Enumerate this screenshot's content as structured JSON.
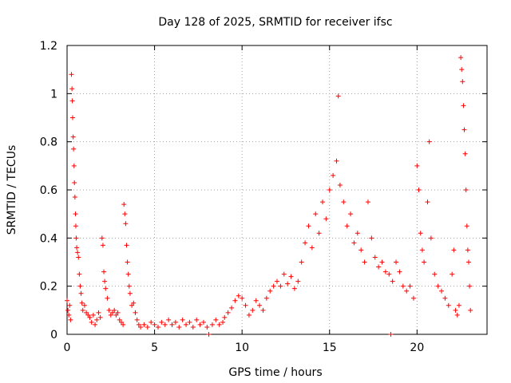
{
  "chart_data": {
    "type": "scatter",
    "title": "Day 128 of 2025, SRMTID for receiver ifsc",
    "xlabel": "GPS time / hours",
    "ylabel": "SRMTID / TECUs",
    "xlim": [
      0,
      24
    ],
    "ylim": [
      0,
      1.2
    ],
    "xticks": [
      0,
      5,
      10,
      15,
      20
    ],
    "yticks": [
      0,
      0.2,
      0.4,
      0.6,
      0.8,
      1,
      1.2
    ],
    "xtick_labels": [
      "0",
      "5",
      "10",
      "15",
      "20"
    ],
    "ytick_labels": [
      "0",
      "0.2",
      "0.4",
      "0.6",
      "0.8",
      "1",
      "1.2"
    ],
    "grid": true,
    "marker": "+",
    "color": "#ff0000",
    "series": [
      {
        "name": "SRMTID",
        "points": [
          [
            0.0,
            0.14
          ],
          [
            0.05,
            0.1
          ],
          [
            0.1,
            0.08
          ],
          [
            0.15,
            0.12
          ],
          [
            0.2,
            0.06
          ],
          [
            0.25,
            1.08
          ],
          [
            0.28,
            1.02
          ],
          [
            0.3,
            0.97
          ],
          [
            0.32,
            0.9
          ],
          [
            0.35,
            0.82
          ],
          [
            0.37,
            0.77
          ],
          [
            0.4,
            0.7
          ],
          [
            0.42,
            0.63
          ],
          [
            0.45,
            0.57
          ],
          [
            0.48,
            0.5
          ],
          [
            0.5,
            0.45
          ],
          [
            0.52,
            0.4
          ],
          [
            0.55,
            0.36
          ],
          [
            0.6,
            0.34
          ],
          [
            0.65,
            0.32
          ],
          [
            0.7,
            0.25
          ],
          [
            0.75,
            0.2
          ],
          [
            0.8,
            0.17
          ],
          [
            0.85,
            0.13
          ],
          [
            0.9,
            0.1
          ],
          [
            1.0,
            0.12
          ],
          [
            1.1,
            0.09
          ],
          [
            1.2,
            0.08
          ],
          [
            1.3,
            0.07
          ],
          [
            1.4,
            0.05
          ],
          [
            1.5,
            0.08
          ],
          [
            1.6,
            0.04
          ],
          [
            1.7,
            0.06
          ],
          [
            1.8,
            0.09
          ],
          [
            1.9,
            0.07
          ],
          [
            2.0,
            0.4
          ],
          [
            2.05,
            0.37
          ],
          [
            2.1,
            0.26
          ],
          [
            2.15,
            0.22
          ],
          [
            2.2,
            0.19
          ],
          [
            2.3,
            0.15
          ],
          [
            2.4,
            0.1
          ],
          [
            2.5,
            0.08
          ],
          [
            2.6,
            0.09
          ],
          [
            2.7,
            0.1
          ],
          [
            2.8,
            0.08
          ],
          [
            2.9,
            0.09
          ],
          [
            3.0,
            0.06
          ],
          [
            3.1,
            0.05
          ],
          [
            3.2,
            0.04
          ],
          [
            3.25,
            0.54
          ],
          [
            3.3,
            0.5
          ],
          [
            3.35,
            0.46
          ],
          [
            3.4,
            0.37
          ],
          [
            3.45,
            0.3
          ],
          [
            3.5,
            0.25
          ],
          [
            3.55,
            0.2
          ],
          [
            3.6,
            0.17
          ],
          [
            3.7,
            0.12
          ],
          [
            3.8,
            0.13
          ],
          [
            3.9,
            0.09
          ],
          [
            4.0,
            0.06
          ],
          [
            4.1,
            0.04
          ],
          [
            4.2,
            0.03
          ],
          [
            4.4,
            0.04
          ],
          [
            4.6,
            0.03
          ],
          [
            4.8,
            0.05
          ],
          [
            5.0,
            0.04
          ],
          [
            5.2,
            0.03
          ],
          [
            5.4,
            0.05
          ],
          [
            5.6,
            0.04
          ],
          [
            5.8,
            0.06
          ],
          [
            6.0,
            0.04
          ],
          [
            6.2,
            0.05
          ],
          [
            6.4,
            0.03
          ],
          [
            6.6,
            0.06
          ],
          [
            6.8,
            0.04
          ],
          [
            7.0,
            0.05
          ],
          [
            7.2,
            0.03
          ],
          [
            7.4,
            0.06
          ],
          [
            7.6,
            0.04
          ],
          [
            7.8,
            0.05
          ],
          [
            8.0,
            0.03
          ],
          [
            8.1,
            0.0
          ],
          [
            8.3,
            0.04
          ],
          [
            8.5,
            0.06
          ],
          [
            8.7,
            0.04
          ],
          [
            8.9,
            0.05
          ],
          [
            9.0,
            0.07
          ],
          [
            9.2,
            0.09
          ],
          [
            9.4,
            0.11
          ],
          [
            9.6,
            0.14
          ],
          [
            9.8,
            0.16
          ],
          [
            10.0,
            0.15
          ],
          [
            10.2,
            0.12
          ],
          [
            10.4,
            0.08
          ],
          [
            10.6,
            0.1
          ],
          [
            10.8,
            0.14
          ],
          [
            11.0,
            0.12
          ],
          [
            11.2,
            0.1
          ],
          [
            11.4,
            0.15
          ],
          [
            11.6,
            0.18
          ],
          [
            11.8,
            0.2
          ],
          [
            12.0,
            0.22
          ],
          [
            12.2,
            0.2
          ],
          [
            12.4,
            0.25
          ],
          [
            12.6,
            0.21
          ],
          [
            12.8,
            0.24
          ],
          [
            13.0,
            0.19
          ],
          [
            13.2,
            0.22
          ],
          [
            13.4,
            0.3
          ],
          [
            13.6,
            0.38
          ],
          [
            13.8,
            0.45
          ],
          [
            14.0,
            0.36
          ],
          [
            14.2,
            0.5
          ],
          [
            14.4,
            0.42
          ],
          [
            14.6,
            0.55
          ],
          [
            14.8,
            0.48
          ],
          [
            15.0,
            0.6
          ],
          [
            15.2,
            0.66
          ],
          [
            15.4,
            0.72
          ],
          [
            15.5,
            0.99
          ],
          [
            15.6,
            0.62
          ],
          [
            15.8,
            0.55
          ],
          [
            16.0,
            0.45
          ],
          [
            16.2,
            0.5
          ],
          [
            16.4,
            0.38
          ],
          [
            16.6,
            0.42
          ],
          [
            16.8,
            0.35
          ],
          [
            17.0,
            0.3
          ],
          [
            17.2,
            0.55
          ],
          [
            17.4,
            0.4
          ],
          [
            17.6,
            0.32
          ],
          [
            17.8,
            0.28
          ],
          [
            18.0,
            0.3
          ],
          [
            18.2,
            0.26
          ],
          [
            18.4,
            0.25
          ],
          [
            18.5,
            0.0
          ],
          [
            18.6,
            0.22
          ],
          [
            18.8,
            0.3
          ],
          [
            19.0,
            0.26
          ],
          [
            19.2,
            0.2
          ],
          [
            19.4,
            0.18
          ],
          [
            19.6,
            0.2
          ],
          [
            19.8,
            0.15
          ],
          [
            20.0,
            0.7
          ],
          [
            20.1,
            0.6
          ],
          [
            20.2,
            0.42
          ],
          [
            20.3,
            0.35
          ],
          [
            20.4,
            0.3
          ],
          [
            20.6,
            0.55
          ],
          [
            20.7,
            0.8
          ],
          [
            20.8,
            0.4
          ],
          [
            21.0,
            0.25
          ],
          [
            21.2,
            0.2
          ],
          [
            21.4,
            0.18
          ],
          [
            21.6,
            0.15
          ],
          [
            21.8,
            0.12
          ],
          [
            22.0,
            0.25
          ],
          [
            22.1,
            0.35
          ],
          [
            22.2,
            0.1
          ],
          [
            22.3,
            0.08
          ],
          [
            22.4,
            0.12
          ],
          [
            22.5,
            1.15
          ],
          [
            22.55,
            1.1
          ],
          [
            22.6,
            1.05
          ],
          [
            22.65,
            0.95
          ],
          [
            22.7,
            0.85
          ],
          [
            22.75,
            0.75
          ],
          [
            22.8,
            0.6
          ],
          [
            22.85,
            0.45
          ],
          [
            22.9,
            0.35
          ],
          [
            22.95,
            0.3
          ],
          [
            23.0,
            0.2
          ],
          [
            23.05,
            0.1
          ]
        ]
      }
    ]
  }
}
